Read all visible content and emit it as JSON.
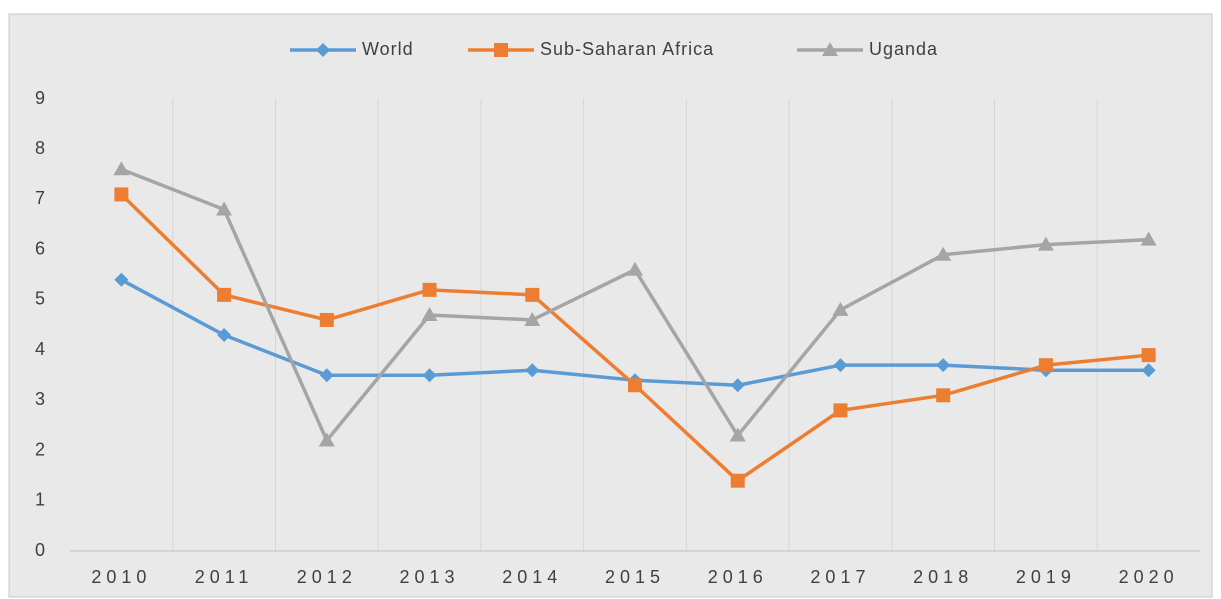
{
  "chart_data": {
    "type": "line",
    "categories": [
      "2010",
      "2011",
      "2012",
      "2013",
      "2014",
      "2015",
      "2016",
      "2017",
      "2018",
      "2019",
      "2020"
    ],
    "series": [
      {
        "name": "World",
        "color": "#5b9bd5",
        "marker": "diamond",
        "values": [
          5.4,
          4.3,
          3.5,
          3.5,
          3.6,
          3.4,
          3.3,
          3.7,
          3.7,
          3.6,
          3.6
        ]
      },
      {
        "name": "Sub-Saharan Africa",
        "color": "#ed7d31",
        "marker": "square",
        "values": [
          7.1,
          5.1,
          4.6,
          5.2,
          5.1,
          3.3,
          1.4,
          2.8,
          3.1,
          3.7,
          3.9
        ]
      },
      {
        "name": "Uganda",
        "color": "#a5a5a5",
        "marker": "triangle",
        "values": [
          7.6,
          6.8,
          2.2,
          4.7,
          4.6,
          5.6,
          2.3,
          4.8,
          5.9,
          6.1,
          6.2
        ]
      }
    ],
    "ylim": [
      0,
      9
    ],
    "yticks": [
      0,
      1,
      2,
      3,
      4,
      5,
      6,
      7,
      8,
      9
    ],
    "legend": "top"
  }
}
